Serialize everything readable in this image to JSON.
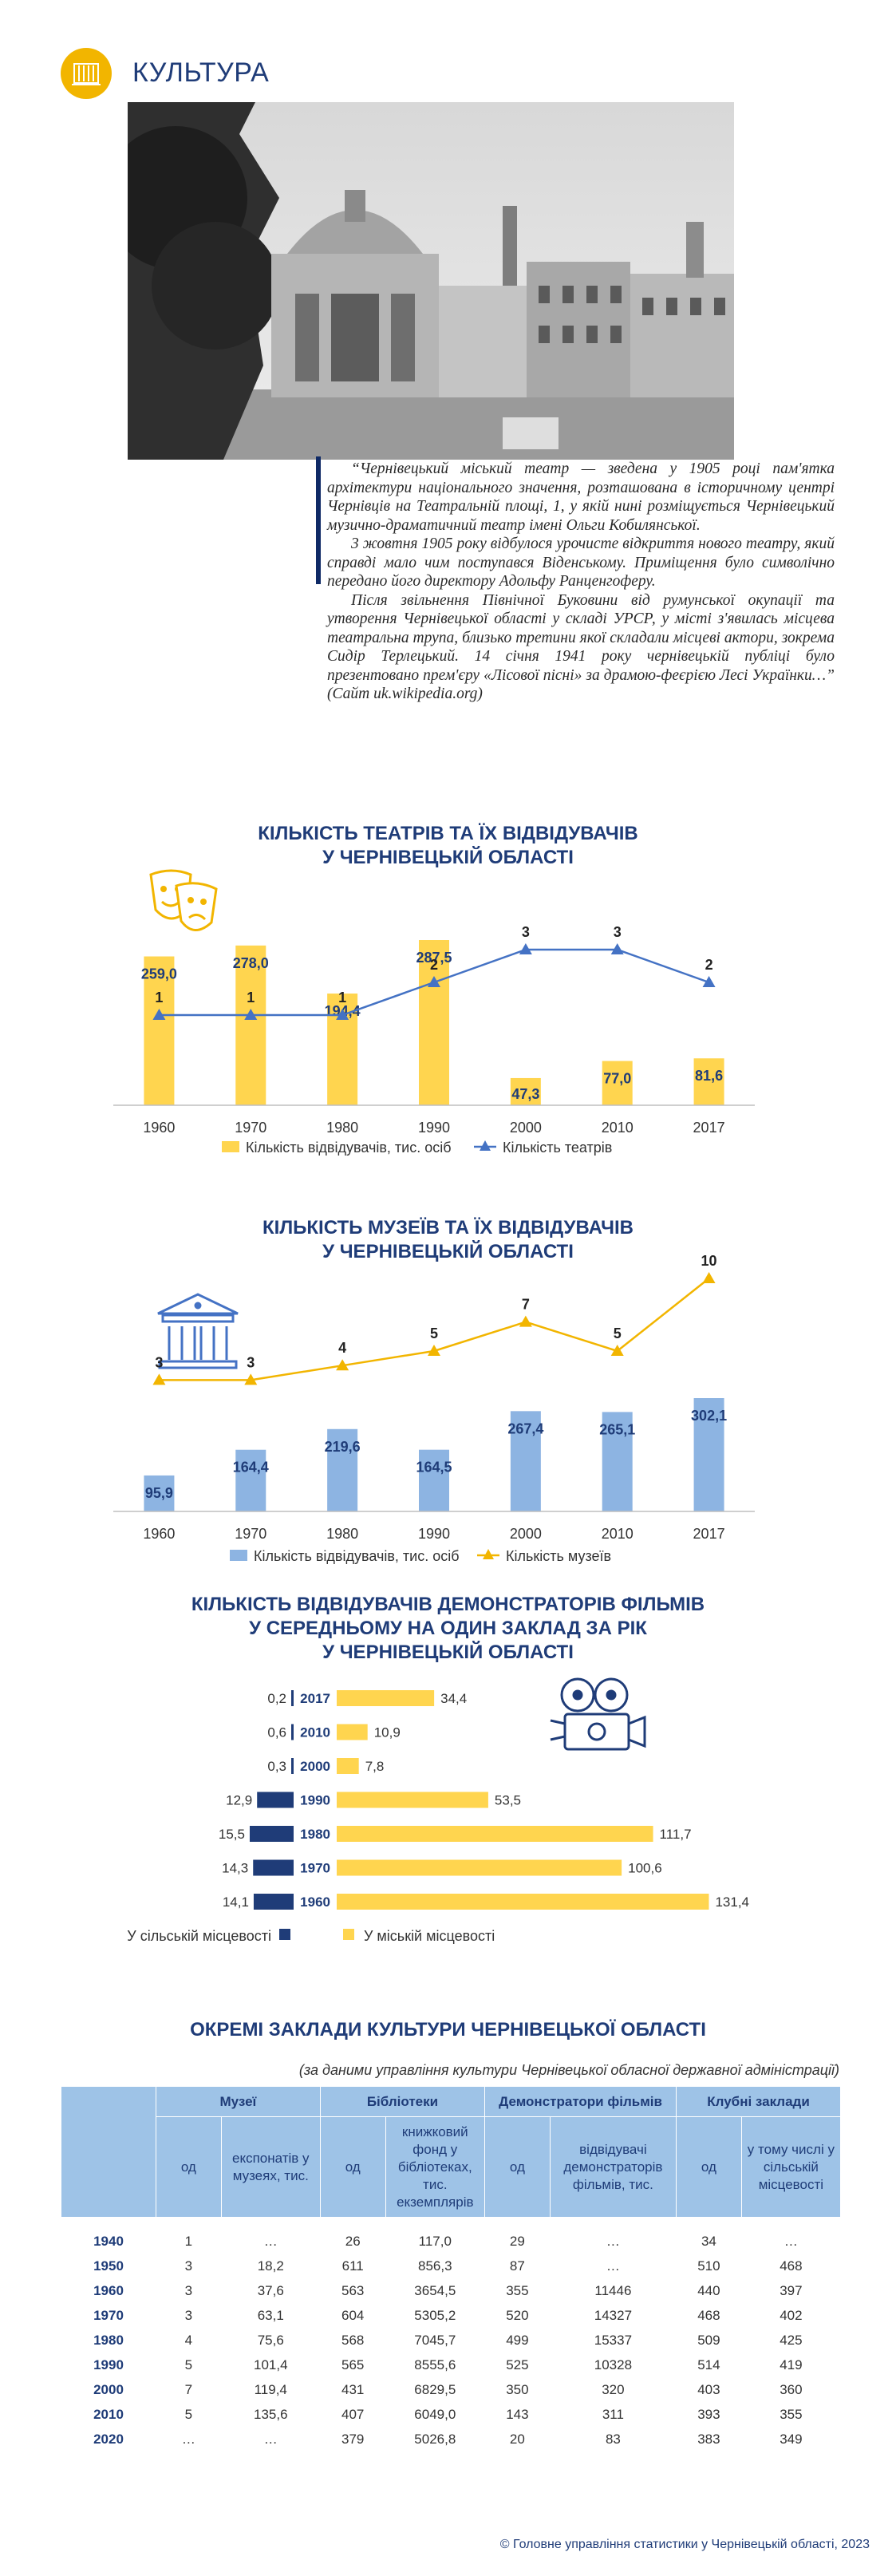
{
  "header": {
    "title": "КУЛЬТУРА",
    "icon": "theatre-building-icon",
    "accent": "#f2b500"
  },
  "quote": {
    "paragraphs": [
      "“Чернівецький міський театр — зведена у 1905 році пам'ятка архітектури національного значення, розташована в історичному центрі Чернівців на Театральній площі, 1, у якій нині розміщується Чернівецький музично-драматичний театр імені Ольги Кобилянської.",
      "3 жовтня 1905 року відбулося урочисте відкриття нового театру, який справді мало чим поступався Віденському. Приміщення було символічно передано його директору Адольфу Ранценгоферу.",
      "Після звільнення Північної Буковини від румунської окупації та утворення Чернівецької області у складі УРСР, у місті з'явилась місцева театральна трупа, близько третини якої складали місцеві актори, зокрема Сидір Терлецький. 14 січня 1941 року чернівецькій публіці було презентовано прем'єру «Лісової пісні» за драмою-феєрією Лесі Українки…” (Сайт uk.wikipedia.org)"
    ]
  },
  "chart_data": [
    {
      "type": "bar",
      "title": "КІЛЬКІСТЬ ТЕАТРІВ ТА ЇХ ВІДВІДУВАЧІВ У ЧЕРНІВЕЦЬКІЙ ОБЛАСТІ",
      "title_lines": [
        "КІЛЬКІСТЬ ТЕАТРІВ ТА ЇХ ВІДВІДУВАЧІВ",
        "У ЧЕРНІВЕЦЬКІЙ ОБЛАСТІ"
      ],
      "categories": [
        "1960",
        "1970",
        "1980",
        "1990",
        "2000",
        "2010",
        "2017"
      ],
      "series": [
        {
          "name": "Кількість відвідувачів, тис. осіб",
          "kind": "bar",
          "values": [
            259.0,
            278.0,
            194.4,
            287.5,
            47.3,
            77.0,
            81.6
          ],
          "labels": [
            "259,0",
            "278,0",
            "194,4",
            "287,5",
            "47,3",
            "77,0",
            "81,6"
          ],
          "color": "#ffd54f"
        },
        {
          "name": "Кількість театрів",
          "kind": "line",
          "values": [
            1,
            1,
            1,
            2,
            3,
            3,
            2
          ],
          "labels": [
            "1",
            "1",
            "1",
            "2",
            "3",
            "3",
            "2"
          ],
          "color": "#4472c4"
        }
      ],
      "icon": "theatre-masks-icon",
      "legend": "bottom"
    },
    {
      "type": "bar",
      "title": "КІЛЬКІСТЬ МУЗЕЇВ ТА ЇХ ВІДВІДУВАЧІВ У ЧЕРНІВЕЦЬКІЙ ОБЛАСТІ",
      "title_lines": [
        "КІЛЬКІСТЬ МУЗЕЇВ ТА ЇХ ВІДВІДУВАЧІВ",
        "У ЧЕРНІВЕЦЬКІЙ ОБЛАСТІ"
      ],
      "categories": [
        "1960",
        "1970",
        "1980",
        "1990",
        "2000",
        "2010",
        "2017"
      ],
      "series": [
        {
          "name": "Кількість відвідувачів, тис. осіб",
          "kind": "bar",
          "values": [
            95.9,
            164.4,
            219.6,
            164.5,
            267.4,
            265.1,
            302.1
          ],
          "labels": [
            "95,9",
            "164,4",
            "219,6",
            "164,5",
            "267,4",
            "265,1",
            "302,1"
          ],
          "color": "#8db4e2"
        },
        {
          "name": "Кількість музеїв",
          "kind": "line",
          "values": [
            3,
            3,
            4,
            5,
            7,
            5,
            10
          ],
          "labels": [
            "3",
            "3",
            "4",
            "5",
            "7",
            "5",
            "10"
          ],
          "color": "#f2b500"
        }
      ],
      "icon": "museum-building-icon",
      "legend": "bottom"
    },
    {
      "type": "bar",
      "orientation": "horizontal",
      "title": "КІЛЬКІСТЬ ВІДВІДУВАЧІВ ДЕМОНСТРАТОРІВ ФІЛЬМІВ У СЕРЕДНЬОМУ НА ОДИН ЗАКЛАД ЗА РІК У ЧЕРНІВЕЦЬКІЙ ОБЛАСТІ",
      "title_lines": [
        "КІЛЬКІСТЬ ВІДВІДУВАЧІВ ДЕМОНСТРАТОРІВ ФІЛЬМІВ",
        "У СЕРЕДНЬОМУ НА ОДИН ЗАКЛАД ЗА РІК",
        "У ЧЕРНІВЕЦЬКІЙ ОБЛАСТІ"
      ],
      "categories": [
        "2017",
        "2010",
        "2000",
        "1990",
        "1980",
        "1970",
        "1960"
      ],
      "series": [
        {
          "name": "У сільській місцевості",
          "values": [
            0.2,
            0.6,
            0.3,
            12.9,
            15.5,
            14.3,
            14.1
          ],
          "labels": [
            "0,2",
            "0,6",
            "0,3",
            "12,9",
            "15,5",
            "14,3",
            "14,1"
          ],
          "color": "#1f3c78"
        },
        {
          "name": "У міській місцевості",
          "values": [
            34.4,
            10.9,
            7.8,
            53.5,
            111.7,
            100.6,
            131.4
          ],
          "labels": [
            "34,4",
            "10,9",
            "7,8",
            "53,5",
            "111,7",
            "100,6",
            "131,4"
          ],
          "color": "#ffd54f"
        }
      ],
      "icon": "film-projector-icon",
      "legend": "bottom"
    }
  ],
  "table": {
    "title": "ОКРЕМІ ЗАКЛАДИ КУЛЬТУРИ ЧЕРНІВЕЦЬКОЇ ОБЛАСТІ",
    "source": "(за даними управління культури Чернівецької обласної державної адміністрації)",
    "groups": [
      "Музеї",
      "Бібліотеки",
      "Демонстратори фільмів",
      "Клубні заклади"
    ],
    "subheaders": [
      "од",
      "експонатів у музеях, тис.",
      "од",
      "книжковий фонд у бібліотеках, тис. екземплярів",
      "од",
      "відвідувачі демонстраторів фільмів, тис.",
      "од",
      "у тому числі у сільській місцевості"
    ],
    "rows": [
      [
        "1940",
        "1",
        "…",
        "26",
        "117,0",
        "29",
        "…",
        "34",
        "…"
      ],
      [
        "1950",
        "3",
        "18,2",
        "611",
        "856,3",
        "87",
        "…",
        "510",
        "468"
      ],
      [
        "1960",
        "3",
        "37,6",
        "563",
        "3654,5",
        "355",
        "11446",
        "440",
        "397"
      ],
      [
        "1970",
        "3",
        "63,1",
        "604",
        "5305,2",
        "520",
        "14327",
        "468",
        "402"
      ],
      [
        "1980",
        "4",
        "75,6",
        "568",
        "7045,7",
        "499",
        "15337",
        "509",
        "425"
      ],
      [
        "1990",
        "5",
        "101,4",
        "565",
        "8555,6",
        "525",
        "10328",
        "514",
        "419"
      ],
      [
        "2000",
        "7",
        "119,4",
        "431",
        "6829,5",
        "350",
        "320",
        "403",
        "360"
      ],
      [
        "2010",
        "5",
        "135,6",
        "407",
        "6049,0",
        "143",
        "311",
        "393",
        "355"
      ],
      [
        "2020",
        "…",
        "…",
        "379",
        "5026,8",
        "20",
        "83",
        "383",
        "349"
      ]
    ]
  },
  "footer": "© Головне управління статистики у Чернівецькій області, 2023"
}
